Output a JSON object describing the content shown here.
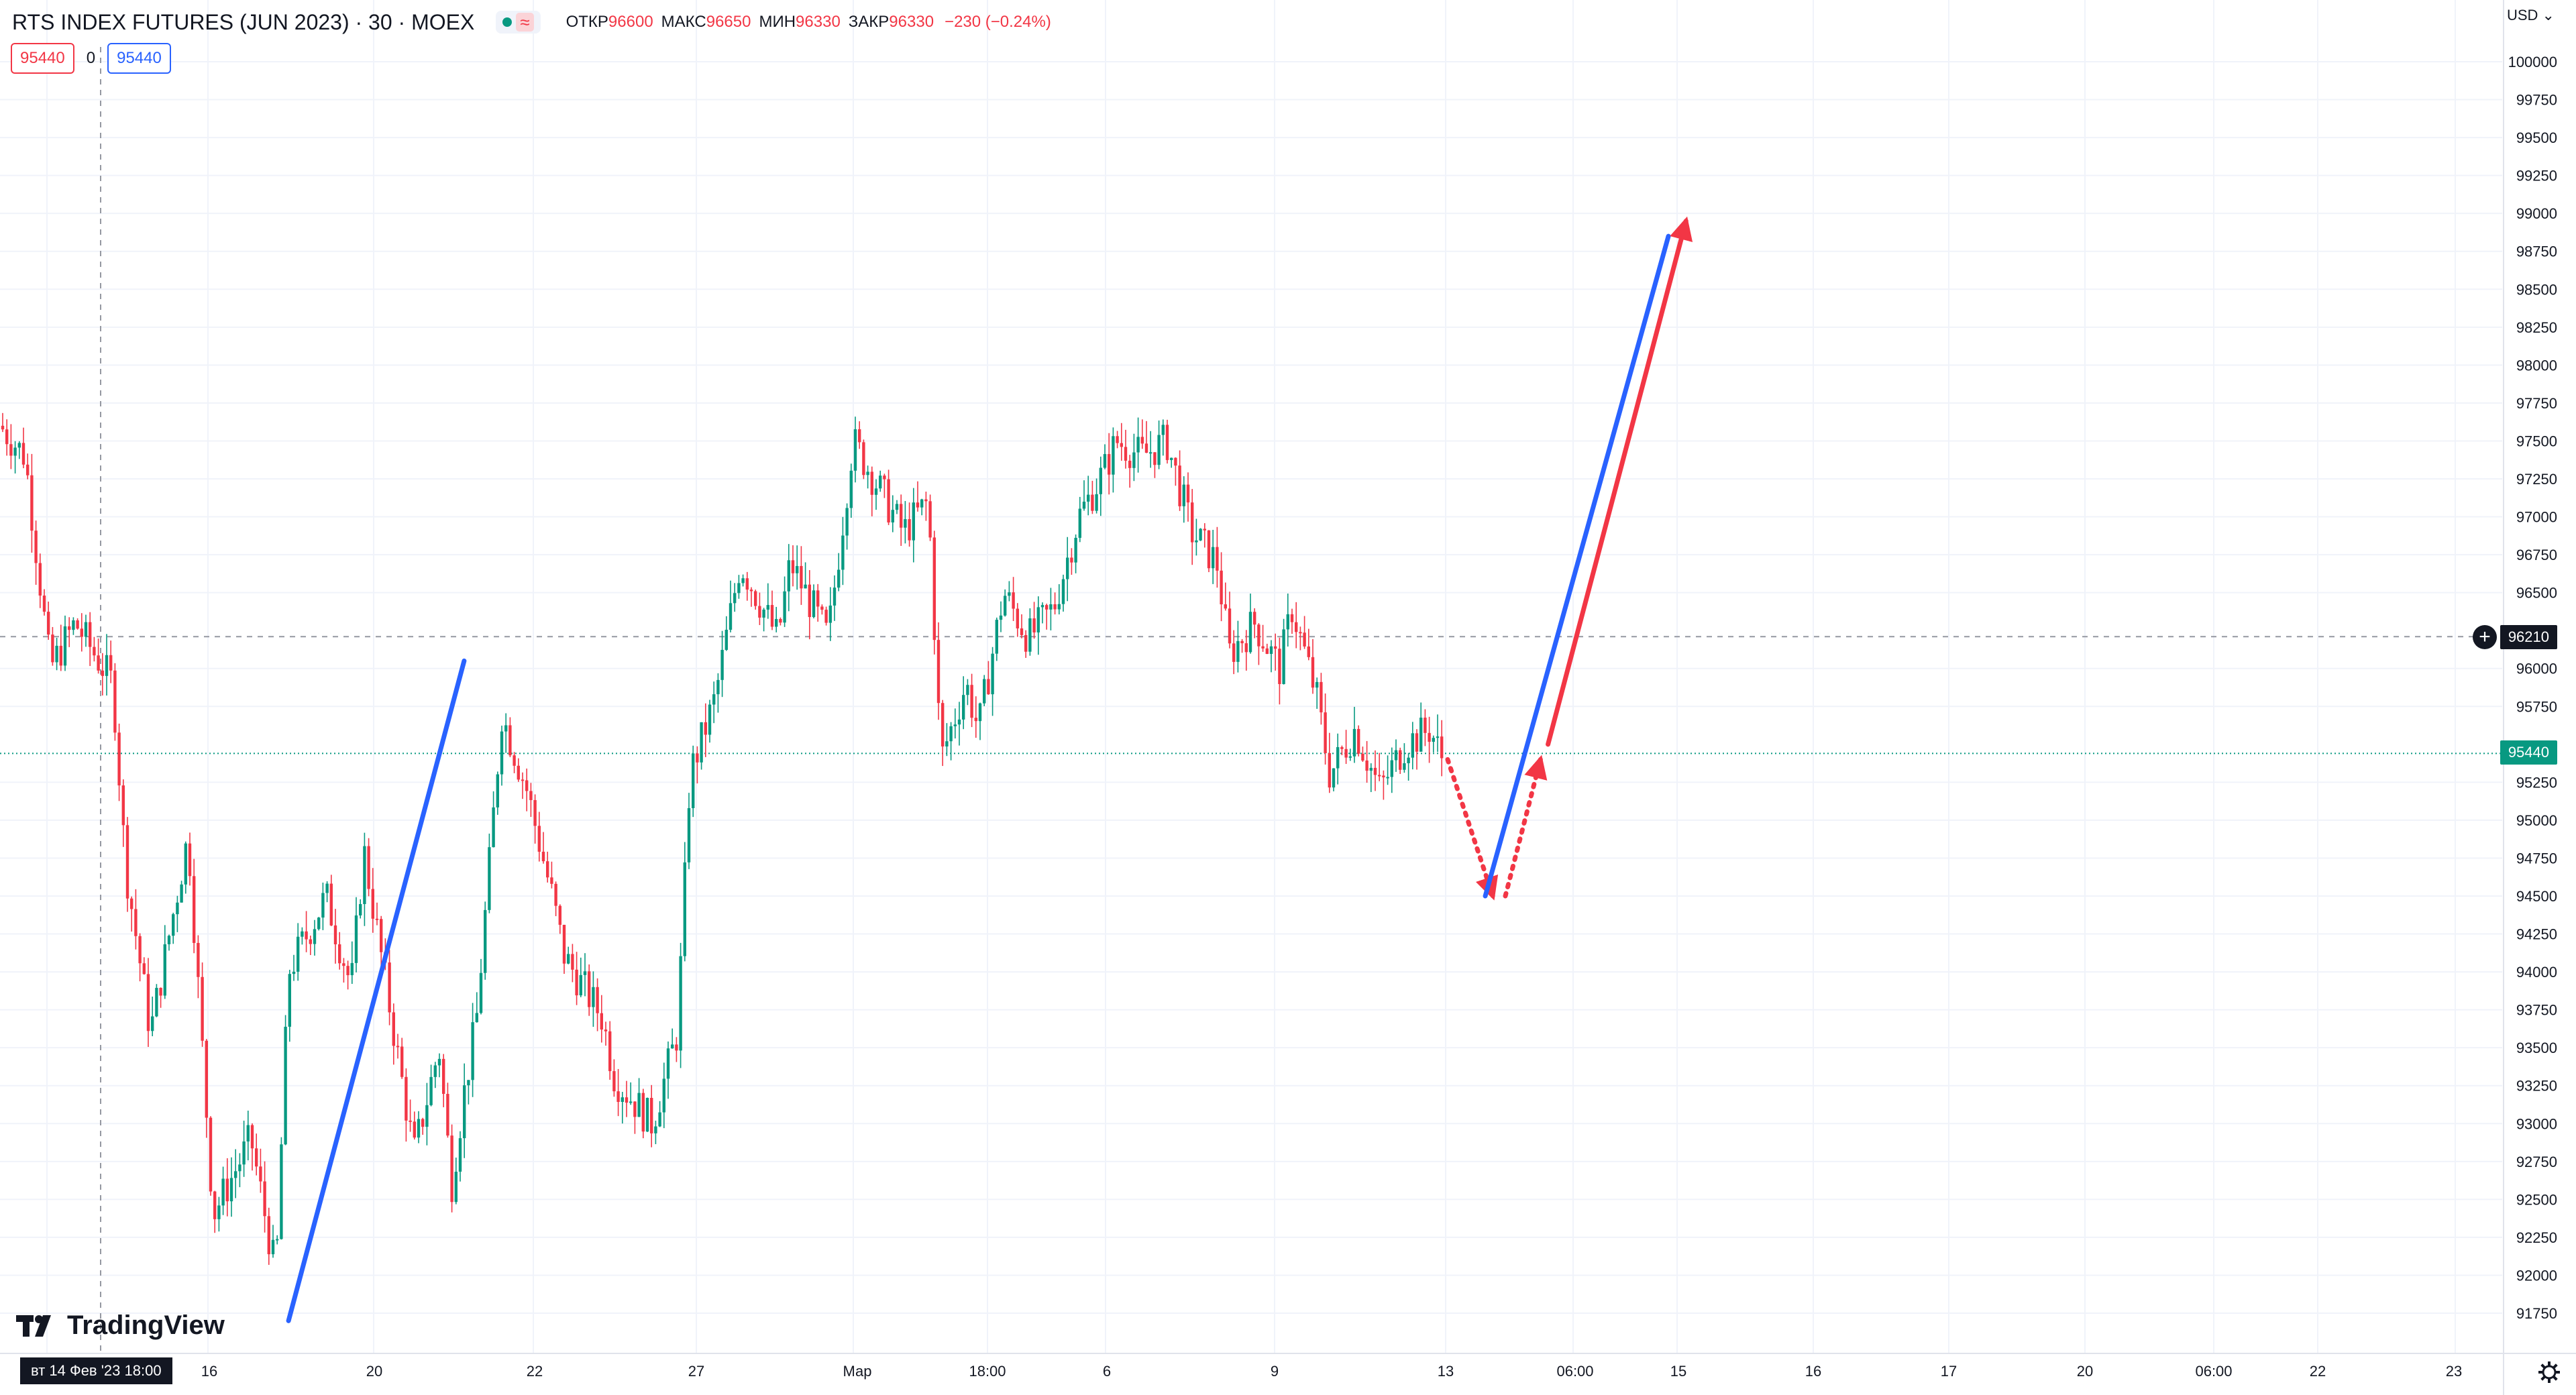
{
  "header": {
    "title": "RTS INDEX FUTURES (JUN 2023) · 30 · MOEX",
    "wave_glyph": "≈",
    "ohlc": {
      "open_label": "ОТКР",
      "open": "96600",
      "high_label": "МАКС",
      "high": "96650",
      "low_label": "МИН",
      "low": "96330",
      "close_label": "ЗАКР",
      "close": "96330",
      "change": "−230 (−0.24%)"
    }
  },
  "order_panel": {
    "sell_price": "95440",
    "quantity": "0",
    "buy_price": "95440"
  },
  "price_scale": {
    "currency": "USD ⌄",
    "ticks": [
      "100000",
      "99750",
      "99500",
      "99250",
      "99000",
      "98750",
      "98500",
      "98250",
      "98000",
      "97750",
      "97500",
      "97250",
      "97000",
      "96750",
      "96500",
      "96000",
      "95750",
      "95250",
      "95000",
      "94750",
      "94500",
      "94250",
      "94000",
      "93750",
      "93500",
      "93250",
      "93000",
      "92750",
      "92500",
      "92250",
      "92000",
      "91750"
    ],
    "crosshair_price": "96210",
    "last_price": "95440"
  },
  "time_scale": {
    "ticks": [
      "16",
      "20",
      "22",
      "27",
      "Мар",
      "18:00",
      "6",
      "9",
      "13",
      "06:00",
      "15",
      "16",
      "17",
      "20",
      "06:00",
      "22",
      "23"
    ],
    "crosshair_label": "вт 14 Фев '23    18:00"
  },
  "logo": {
    "text": "TradingView"
  },
  "colors": {
    "up": "#089981",
    "down": "#f23645",
    "blue_line": "#2962ff",
    "red_line": "#f23645"
  },
  "icons": [
    "plus-circle-icon",
    "gear-icon",
    "tradingview-logo-icon",
    "status-dot-icon"
  ],
  "chart_data": {
    "type": "candlestick",
    "ylim": [
      91600,
      100200
    ],
    "x_range_days": [
      "14 Feb 2023",
      "23 Mar 2023"
    ],
    "close_path": [
      [
        0,
        97600
      ],
      [
        0.01,
        97400
      ],
      [
        0.02,
        96000
      ],
      [
        0.03,
        96300
      ],
      [
        0.045,
        95900
      ],
      [
        0.05,
        94700
      ],
      [
        0.06,
        93600
      ],
      [
        0.075,
        94900
      ],
      [
        0.085,
        92400
      ],
      [
        0.1,
        92900
      ],
      [
        0.11,
        92000
      ],
      [
        0.115,
        94000
      ],
      [
        0.13,
        94500
      ],
      [
        0.14,
        93900
      ],
      [
        0.145,
        94800
      ],
      [
        0.155,
        93800
      ],
      [
        0.165,
        92800
      ],
      [
        0.175,
        93500
      ],
      [
        0.18,
        92600
      ],
      [
        0.185,
        93200
      ],
      [
        0.19,
        93700
      ],
      [
        0.2,
        95700
      ],
      [
        0.21,
        95200
      ],
      [
        0.22,
        94500
      ],
      [
        0.225,
        94100
      ],
      [
        0.24,
        93700
      ],
      [
        0.245,
        93300
      ],
      [
        0.26,
        93000
      ],
      [
        0.27,
        93600
      ],
      [
        0.275,
        95300
      ],
      [
        0.285,
        95800
      ],
      [
        0.295,
        96700
      ],
      [
        0.31,
        96200
      ],
      [
        0.315,
        96700
      ],
      [
        0.33,
        96200
      ],
      [
        0.34,
        97500
      ],
      [
        0.35,
        97200
      ],
      [
        0.36,
        96900
      ],
      [
        0.37,
        97100
      ],
      [
        0.375,
        95400
      ],
      [
        0.385,
        95900
      ],
      [
        0.39,
        95600
      ],
      [
        0.4,
        96500
      ],
      [
        0.41,
        96200
      ],
      [
        0.42,
        96400
      ],
      [
        0.43,
        97000
      ],
      [
        0.44,
        97300
      ],
      [
        0.445,
        97500
      ],
      [
        0.455,
        97400
      ],
      [
        0.465,
        97500
      ],
      [
        0.475,
        96900
      ],
      [
        0.485,
        96700
      ],
      [
        0.49,
        96100
      ],
      [
        0.5,
        96300
      ],
      [
        0.51,
        96000
      ],
      [
        0.515,
        96400
      ],
      [
        0.525,
        95800
      ],
      [
        0.53,
        95300
      ],
      [
        0.54,
        95600
      ],
      [
        0.55,
        95200
      ],
      [
        0.56,
        95500
      ],
      [
        0.57,
        95600
      ],
      [
        0.575,
        95400
      ]
    ],
    "annotations": [
      {
        "type": "trend_line",
        "color": "blue",
        "from": [
          0.115,
          91700
        ],
        "to": [
          0.185,
          96050
        ]
      },
      {
        "type": "dotted_arrow",
        "color": "red",
        "from": [
          0.577,
          95400
        ],
        "to": [
          0.595,
          94500
        ]
      },
      {
        "type": "dotted_arrow",
        "color": "red",
        "from": [
          0.6,
          94500
        ],
        "to": [
          0.614,
          95400
        ]
      },
      {
        "type": "trend_line",
        "color": "blue",
        "from": [
          0.592,
          94500
        ],
        "to": [
          0.665,
          98850
        ]
      },
      {
        "type": "arrow",
        "color": "red",
        "from": [
          0.617,
          95500
        ],
        "to": [
          0.672,
          98950
        ]
      }
    ]
  }
}
